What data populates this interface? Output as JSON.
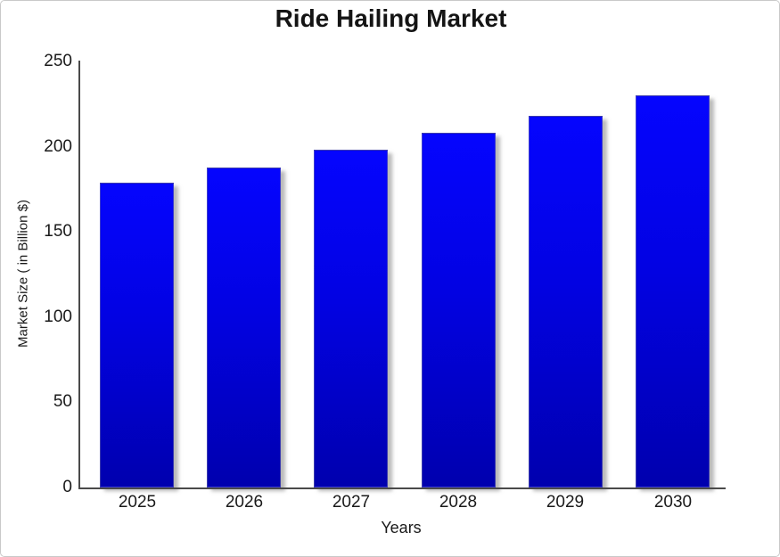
{
  "window": {
    "background_color": "#ffffff",
    "border_color": "#c9c9c9"
  },
  "chart_data": {
    "type": "bar",
    "title": "Ride Hailing Market",
    "xlabel": "Years",
    "ylabel": "Market Size ( in Billion $)",
    "categories": [
      "2025",
      "2026",
      "2027",
      "2028",
      "2029",
      "2030"
    ],
    "values": [
      179,
      188,
      198,
      208,
      218,
      230
    ],
    "ylim": [
      0,
      250
    ],
    "yticks": [
      0,
      50,
      100,
      150,
      200,
      250
    ],
    "grid": false,
    "legend": "none",
    "bar_color_top": "#0505fe",
    "bar_color_bottom": "#0000ae",
    "bar_shadow_color": "#808080",
    "axis_color": "#4a4a4a",
    "text_color": "#1a1a1a"
  }
}
